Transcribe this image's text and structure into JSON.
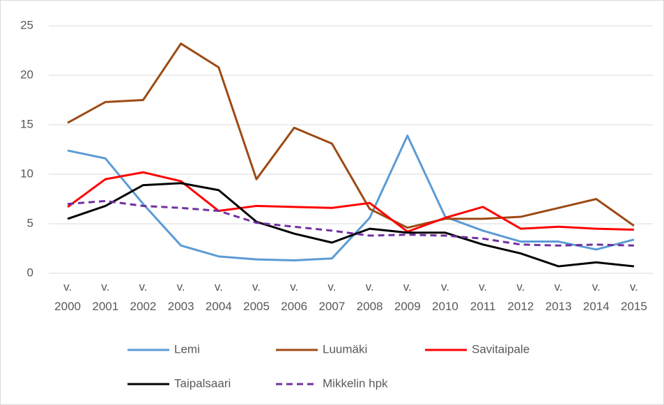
{
  "chart_data": {
    "type": "line",
    "categories": [
      "v. 2000",
      "v. 2001",
      "v. 2002",
      "v. 2003",
      "v. 2004",
      "v. 2005",
      "v. 2006",
      "v. 2007",
      "v. 2008",
      "v. 2009",
      "v. 2010",
      "v. 2011",
      "v. 2012",
      "v. 2013",
      "v. 2014",
      "v. 2015"
    ],
    "series": [
      {
        "name": "Lemi",
        "color": "#5b9bd5",
        "values": [
          12.4,
          11.6,
          7.0,
          2.8,
          1.7,
          1.4,
          1.3,
          1.5,
          5.6,
          13.9,
          5.7,
          4.3,
          3.2,
          3.2,
          2.4,
          3.4
        ]
      },
      {
        "name": "Luumäki",
        "color": "#9c4a14",
        "values": [
          15.2,
          17.3,
          17.5,
          23.2,
          20.8,
          9.5,
          14.7,
          13.1,
          6.5,
          4.6,
          5.5,
          5.5,
          5.7,
          6.6,
          7.5,
          4.8
        ]
      },
      {
        "name": "Savitaipale",
        "color": "#ff0000",
        "values": [
          6.7,
          9.5,
          10.2,
          9.3,
          6.3,
          6.8,
          6.7,
          6.6,
          7.1,
          4.2,
          5.6,
          6.7,
          4.5,
          4.7,
          4.5,
          4.4
        ]
      },
      {
        "name": "Taipalsaari",
        "color": "#000000",
        "values": [
          5.5,
          6.8,
          8.9,
          9.1,
          8.4,
          5.2,
          4.0,
          3.1,
          4.5,
          4.1,
          4.1,
          2.9,
          2.0,
          0.7,
          1.1,
          0.7
        ]
      },
      {
        "name": "Mikkelin hpk",
        "color": "#7030a0",
        "style": "dashed",
        "values": [
          7.0,
          7.3,
          6.8,
          6.6,
          6.3,
          5.1,
          4.7,
          4.3,
          3.8,
          3.9,
          3.8,
          3.5,
          2.9,
          2.8,
          2.9,
          2.8
        ]
      }
    ],
    "ylim": [
      0,
      25
    ],
    "yticks": [
      0,
      5,
      10,
      15,
      20,
      25
    ],
    "grid": true,
    "legend": "bottom"
  }
}
